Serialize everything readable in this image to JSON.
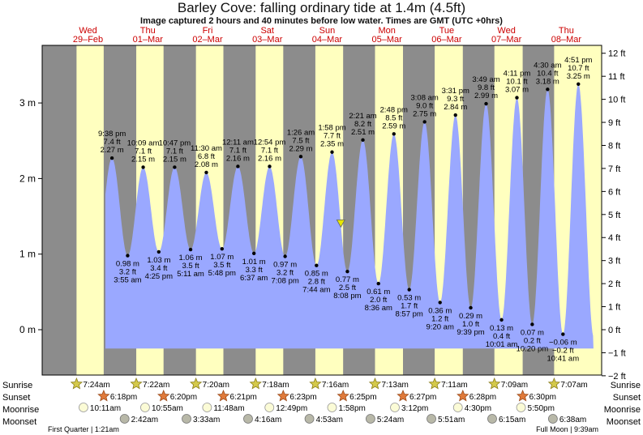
{
  "title": "Barley Cove: falling  ordinary tide at 1.4m (4.5ft)",
  "subtitle": "Image captured 2 hours and 40 minutes before low water. Times are GMT (UTC +0hrs)",
  "row_labels": {
    "sunrise": "Sunrise",
    "sunset": "Sunset",
    "moonrise": "Moonrise",
    "moonset": "Moonset"
  },
  "bottom_notes": {
    "first_quarter": "First Quarter | 1:21am",
    "full_moon": "Full Moon | 9:39am"
  },
  "colors": {
    "tide": "#9aa8ff",
    "day": "#ffffbf",
    "night": "#8c8c8c",
    "day_header": "#cc0000",
    "marker": "#e8e800"
  },
  "chart_data": {
    "type": "area",
    "title": "Barley Cove: falling  ordinary tide at 1.4m (4.5ft)",
    "x_unit": "hours from 00:00 Thu 01-Mar",
    "xlim": [
      -30.4,
      194.2
    ],
    "ylim_m": [
      -0.74,
      3.75
    ],
    "y_left_ticks": [
      "3 m",
      "2 m",
      "1 m",
      "0 m"
    ],
    "y_right_ticks": [
      "12 ft",
      "11 ft",
      "10 ft",
      "9 ft",
      "8 ft",
      "7 ft",
      "6 ft",
      "5 ft",
      "4 ft",
      "3 ft",
      "2 ft",
      "1 ft",
      "0 ft",
      "−1 ft",
      "−2 ft"
    ],
    "days": [
      {
        "dow": "Wed",
        "date": "29–Feb"
      },
      {
        "dow": "Thu",
        "date": "01–Mar"
      },
      {
        "dow": "Fri",
        "date": "02–Mar"
      },
      {
        "dow": "Sat",
        "date": "03–Mar"
      },
      {
        "dow": "Sun",
        "date": "04–Mar"
      },
      {
        "dow": "Mon",
        "date": "05–Mar"
      },
      {
        "dow": "Tue",
        "date": "06–Mar"
      },
      {
        "dow": "Wed",
        "date": "07–Mar"
      },
      {
        "dow": "Thu",
        "date": "08–Mar"
      }
    ],
    "extremes": [
      {
        "type": "high",
        "t": -2.37,
        "m": 2.27,
        "time": "9:38 pm",
        "ft": "7.4 ft",
        "mlab": "2.27 m"
      },
      {
        "type": "low",
        "t": 3.92,
        "m": 0.98,
        "time": "3:55 am",
        "ft": "3.2 ft",
        "mlab": "0.98 m"
      },
      {
        "type": "high",
        "t": 10.15,
        "m": 2.15,
        "time": "10:09 am",
        "ft": "7.1 ft",
        "mlab": "2.15 m"
      },
      {
        "type": "low",
        "t": 16.42,
        "m": 1.03,
        "time": "4:25 pm",
        "ft": "3.4 ft",
        "mlab": "1.03 m"
      },
      {
        "type": "high",
        "t": 22.78,
        "m": 2.15,
        "time": "10:47 pm",
        "ft": "7.1 ft",
        "mlab": "2.15 m"
      },
      {
        "type": "low",
        "t": 29.18,
        "m": 1.06,
        "time": "5:11 am",
        "ft": "3.5 ft",
        "mlab": "1.06 m"
      },
      {
        "type": "high",
        "t": 35.5,
        "m": 2.08,
        "time": "11:30 am",
        "ft": "6.8 ft",
        "mlab": "2.08 m"
      },
      {
        "type": "low",
        "t": 41.8,
        "m": 1.07,
        "time": "5:48 pm",
        "ft": "3.5 ft",
        "mlab": "1.07 m"
      },
      {
        "type": "high",
        "t": 48.18,
        "m": 2.16,
        "time": "12:11 am",
        "ft": "7.1 ft",
        "mlab": "2.16 m"
      },
      {
        "type": "low",
        "t": 54.62,
        "m": 1.01,
        "time": "6:37 am",
        "ft": "3.3 ft",
        "mlab": "1.01 m"
      },
      {
        "type": "high",
        "t": 60.9,
        "m": 2.16,
        "time": "12:54 pm",
        "ft": "7.1 ft",
        "mlab": "2.16 m"
      },
      {
        "type": "low",
        "t": 67.13,
        "m": 0.97,
        "time": "7:08 pm",
        "ft": "3.2 ft",
        "mlab": "0.97 m"
      },
      {
        "type": "high",
        "t": 73.43,
        "m": 2.29,
        "time": "1:26 am",
        "ft": "7.5 ft",
        "mlab": "2.29 m"
      },
      {
        "type": "low",
        "t": 79.73,
        "m": 0.85,
        "time": "7:44 am",
        "ft": "2.8 ft",
        "mlab": "0.85 m"
      },
      {
        "type": "high",
        "t": 85.97,
        "m": 2.35,
        "time": "1:58 pm",
        "ft": "7.7 ft",
        "mlab": "2.35 m"
      },
      {
        "type": "low",
        "t": 92.13,
        "m": 0.77,
        "time": "8:08 pm",
        "ft": "2.5 ft",
        "mlab": "0.77 m"
      },
      {
        "type": "high",
        "t": 98.35,
        "m": 2.51,
        "time": "2:21 am",
        "ft": "8.2 ft",
        "mlab": "2.51 m"
      },
      {
        "type": "low",
        "t": 104.6,
        "m": 0.61,
        "time": "8:36 am",
        "ft": "2.0 ft",
        "mlab": "0.61 m"
      },
      {
        "type": "high",
        "t": 110.8,
        "m": 2.59,
        "time": "2:48 pm",
        "ft": "8.5 ft",
        "mlab": "2.59 m"
      },
      {
        "type": "low",
        "t": 116.95,
        "m": 0.53,
        "time": "8:57 pm",
        "ft": "1.7 ft",
        "mlab": "0.53 m"
      },
      {
        "type": "high",
        "t": 123.13,
        "m": 2.75,
        "time": "3:08 am",
        "ft": "9.0 ft",
        "mlab": "2.75 m"
      },
      {
        "type": "low",
        "t": 129.33,
        "m": 0.36,
        "time": "9:20 am",
        "ft": "1.2 ft",
        "mlab": "0.36 m"
      },
      {
        "type": "high",
        "t": 135.52,
        "m": 2.84,
        "time": "3:31 pm",
        "ft": "9.3 ft",
        "mlab": "2.84 m"
      },
      {
        "type": "low",
        "t": 141.65,
        "m": 0.29,
        "time": "9:39 pm",
        "ft": "1.0 ft",
        "mlab": "0.29 m"
      },
      {
        "type": "high",
        "t": 147.82,
        "m": 2.99,
        "time": "3:49 am",
        "ft": "9.8 ft",
        "mlab": "2.99 m"
      },
      {
        "type": "low",
        "t": 154.02,
        "m": 0.13,
        "time": "10:01 am",
        "ft": "0.4 ft",
        "mlab": "0.13 m"
      },
      {
        "type": "high",
        "t": 160.18,
        "m": 3.07,
        "time": "4:11 pm",
        "ft": "10.1 ft",
        "mlab": "3.07 m"
      },
      {
        "type": "low",
        "t": 166.33,
        "m": 0.07,
        "time": "10:20 pm",
        "ft": "0.2 ft",
        "mlab": "0.07 m"
      },
      {
        "type": "high",
        "t": 172.5,
        "m": 3.18,
        "time": "4:30 am",
        "ft": "10.4 ft",
        "mlab": "3.18 m"
      },
      {
        "type": "low",
        "t": 178.68,
        "m": -0.06,
        "time": "10:41 am",
        "ft": "−0.2 ft",
        "mlab": "−0.06 m"
      },
      {
        "type": "high",
        "t": 184.85,
        "m": 3.25,
        "time": "4:51 pm",
        "ft": "10.7 ft",
        "mlab": "3.25 m"
      }
    ],
    "current": {
      "t": 89.5,
      "m": 1.4
    },
    "sunrise": [
      {
        "t": -16.6,
        "time": "7:24am"
      },
      {
        "t": 7.37,
        "time": "7:22am"
      },
      {
        "t": 31.33,
        "time": "7:20am"
      },
      {
        "t": 55.3,
        "time": "7:18am"
      },
      {
        "t": 79.27,
        "time": "7:16am"
      },
      {
        "t": 103.22,
        "time": "7:13am"
      },
      {
        "t": 127.18,
        "time": "7:11am"
      },
      {
        "t": 151.15,
        "time": "7:09am"
      },
      {
        "t": 175.12,
        "time": "7:07am"
      }
    ],
    "sunset": [
      {
        "t": -5.7,
        "time": "6:18pm"
      },
      {
        "t": 18.33,
        "time": "6:20pm"
      },
      {
        "t": 42.35,
        "time": "6:21pm"
      },
      {
        "t": 66.38,
        "time": "6:23pm"
      },
      {
        "t": 90.42,
        "time": "6:25pm"
      },
      {
        "t": 114.45,
        "time": "6:27pm"
      },
      {
        "t": 138.47,
        "time": "6:28pm"
      },
      {
        "t": 162.5,
        "time": "6:30pm"
      }
    ],
    "moonrise": [
      {
        "t": -13.82,
        "time": "10:11am"
      },
      {
        "t": 10.92,
        "time": "10:55am"
      },
      {
        "t": 35.8,
        "time": "11:48am"
      },
      {
        "t": 60.82,
        "time": "12:49pm"
      },
      {
        "t": 85.97,
        "time": "1:58pm"
      },
      {
        "t": 111.2,
        "time": "3:12pm"
      },
      {
        "t": 136.5,
        "time": "4:30pm"
      },
      {
        "t": 161.83,
        "time": "5:50pm"
      }
    ],
    "moonset": [
      {
        "t": 2.7,
        "time": "2:42am"
      },
      {
        "t": 27.55,
        "time": "3:33am"
      },
      {
        "t": 52.27,
        "time": "4:16am"
      },
      {
        "t": 76.88,
        "time": "4:53am"
      },
      {
        "t": 101.4,
        "time": "5:24am"
      },
      {
        "t": 125.85,
        "time": "5:51am"
      },
      {
        "t": 150.25,
        "time": "6:15am"
      },
      {
        "t": 174.63,
        "time": "6:38am"
      }
    ]
  }
}
